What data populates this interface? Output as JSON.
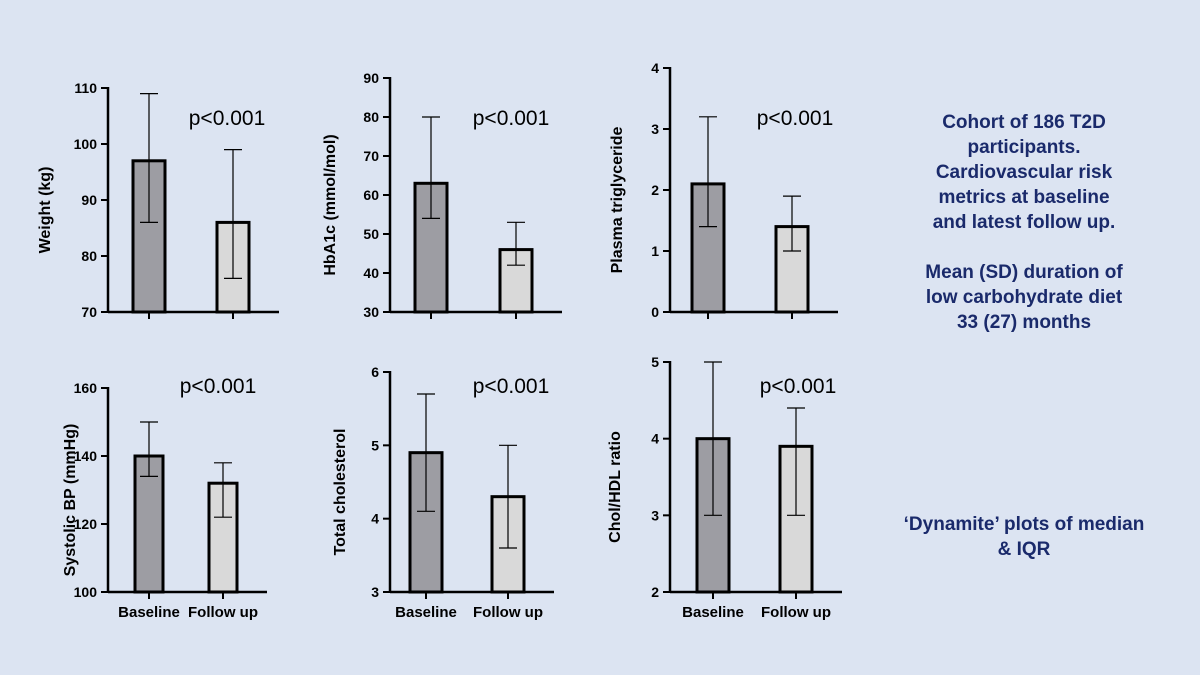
{
  "colors": {
    "background": "#dce4f2",
    "baseline_bar": "#9d9da3",
    "followup_bar": "#d9d9d9",
    "text_accent": "#1a2a6b",
    "axis": "#000000"
  },
  "info_text": {
    "lines": [
      "Cohort of 186 T2D",
      "participants.",
      "Cardiovascular risk",
      "metrics at baseline",
      "and latest follow up."
    ],
    "duration_lines": [
      "Mean (SD) duration of",
      "low carbohydrate diet",
      "33 (27) months"
    ]
  },
  "plot_note": {
    "lines": [
      "‘Dynamite’ plots of median",
      "& IQR"
    ]
  },
  "chart_data": [
    {
      "type": "bar",
      "ylabel": "Weight (kg)",
      "categories": [
        "",
        ""
      ],
      "values": [
        97,
        86
      ],
      "error_low": [
        86,
        76
      ],
      "error_high": [
        109,
        99
      ],
      "ylim": [
        70,
        110
      ],
      "yticks": [
        70,
        80,
        90,
        100,
        110
      ],
      "annotation": "p<0.001"
    },
    {
      "type": "bar",
      "ylabel": "HbA1c (mmol/mol)",
      "categories": [
        "",
        ""
      ],
      "values": [
        63,
        46
      ],
      "error_low": [
        54,
        42
      ],
      "error_high": [
        80,
        53
      ],
      "ylim": [
        30,
        90
      ],
      "yticks": [
        30,
        40,
        50,
        60,
        70,
        80,
        90
      ],
      "annotation": "p<0.001"
    },
    {
      "type": "bar",
      "ylabel": "Plasma triglyceride",
      "categories": [
        "",
        ""
      ],
      "values": [
        2.1,
        1.4
      ],
      "error_low": [
        1.4,
        1.0
      ],
      "error_high": [
        3.2,
        1.9
      ],
      "ylim": [
        0,
        4
      ],
      "yticks": [
        0,
        1,
        2,
        3,
        4
      ],
      "annotation": "p<0.001"
    },
    {
      "type": "bar",
      "ylabel": "Systolic BP (mmHg)",
      "categories": [
        "Baseline",
        "Follow up"
      ],
      "values": [
        140,
        132
      ],
      "error_low": [
        134,
        122
      ],
      "error_high": [
        150,
        138
      ],
      "ylim": [
        100,
        160
      ],
      "yticks": [
        100,
        120,
        140,
        160
      ],
      "annotation": "p<0.001"
    },
    {
      "type": "bar",
      "ylabel": "Total cholesterol",
      "categories": [
        "Baseline",
        "Follow up"
      ],
      "values": [
        4.9,
        4.3
      ],
      "error_low": [
        4.1,
        3.6
      ],
      "error_high": [
        5.7,
        5.0
      ],
      "ylim": [
        3,
        6
      ],
      "yticks": [
        3,
        4,
        5,
        6
      ],
      "annotation": "p<0.001"
    },
    {
      "type": "bar",
      "ylabel": "Chol/HDL ratio",
      "categories": [
        "Baseline",
        "Follow up"
      ],
      "values": [
        4.0,
        3.9
      ],
      "error_low": [
        3.0,
        3.0
      ],
      "error_high": [
        5.0,
        4.4
      ],
      "ylim": [
        2,
        5
      ],
      "yticks": [
        2,
        3,
        4,
        5
      ],
      "annotation": "p<0.001"
    }
  ]
}
